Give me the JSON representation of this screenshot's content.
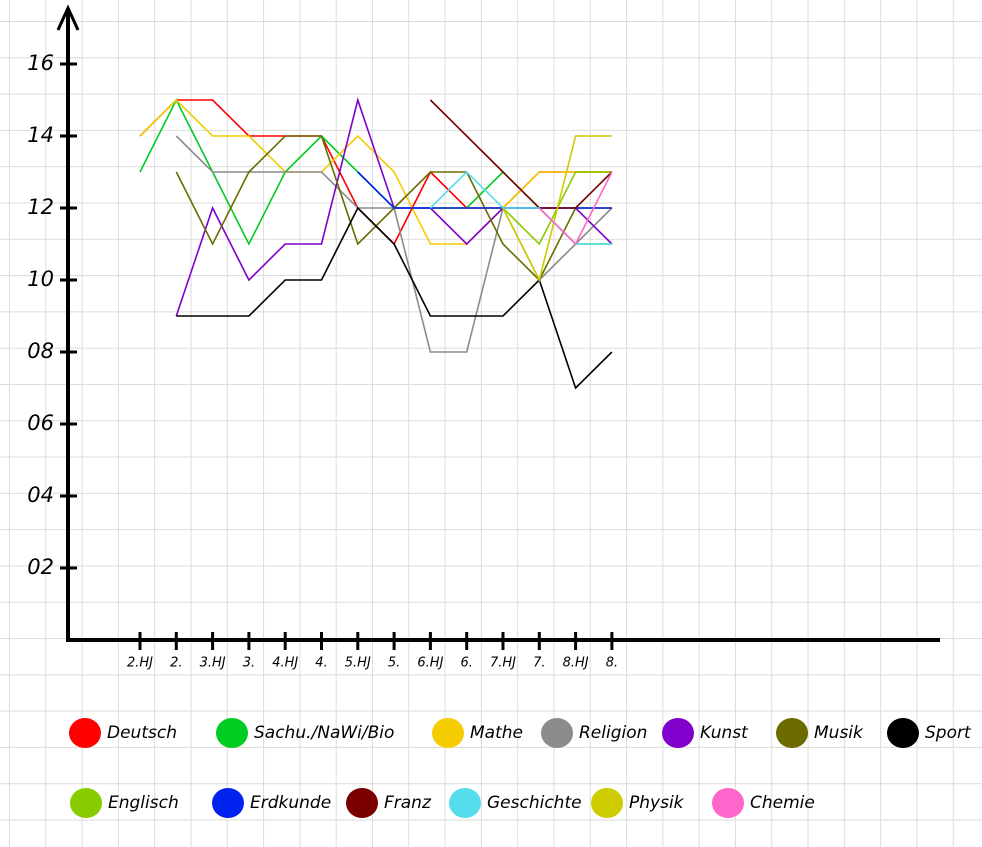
{
  "chart_data": {
    "type": "line",
    "categories": [
      "2.HJ",
      "2.",
      "3.HJ",
      "3.",
      "4.HJ",
      "4.",
      "5.HJ",
      "5.",
      "6.HJ",
      "6.",
      "7.HJ",
      "7.",
      "8.HJ",
      "8."
    ],
    "ylim": [
      0,
      17.5
    ],
    "yticks": [
      {
        "value": 2,
        "label": "02"
      },
      {
        "value": 4,
        "label": "04"
      },
      {
        "value": 6,
        "label": "06"
      },
      {
        "value": 8,
        "label": "08"
      },
      10,
      12,
      14,
      16
    ],
    "series": [
      {
        "name": "Deutsch",
        "color": "#ff0000",
        "values": [
          14,
          15,
          15,
          14,
          14,
          14,
          12,
          11,
          13,
          12,
          12,
          13,
          13,
          13
        ]
      },
      {
        "name": "Sachu./NaWi/Bio",
        "color": "#00cc22",
        "values": [
          13,
          15,
          13,
          11,
          13,
          14,
          13,
          12,
          12,
          12,
          13,
          12,
          11,
          11
        ]
      },
      {
        "name": "Mathe",
        "color": "#f5cc00",
        "values": [
          14,
          15,
          14,
          14,
          13,
          13,
          14,
          13,
          11,
          11,
          12,
          13,
          13,
          13
        ]
      },
      {
        "name": "Religion",
        "color": "#8c8c8c",
        "values": [
          null,
          14,
          13,
          13,
          13,
          13,
          12,
          12,
          8,
          8,
          12,
          10,
          11,
          12
        ]
      },
      {
        "name": "Kunst",
        "color": "#8000cc",
        "values": [
          null,
          9,
          12,
          10,
          11,
          11,
          15,
          12,
          12,
          11,
          12,
          12,
          12,
          11
        ]
      },
      {
        "name": "Musik",
        "color": "#6b6b00",
        "values": [
          null,
          13,
          11,
          13,
          14,
          14,
          11,
          12,
          13,
          13,
          11,
          10,
          12,
          12
        ]
      },
      {
        "name": "Sport",
        "color": "#000000",
        "values": [
          null,
          9,
          9,
          9,
          10,
          10,
          12,
          11,
          9,
          9,
          9,
          10,
          7,
          8
        ]
      },
      {
        "name": "Englisch",
        "color": "#88cc00",
        "values": [
          null,
          null,
          null,
          null,
          null,
          null,
          null,
          null,
          12,
          12,
          12,
          11,
          13,
          13
        ]
      },
      {
        "name": "Erdkunde",
        "color": "#0022ee",
        "values": [
          null,
          null,
          null,
          null,
          null,
          null,
          13,
          12,
          12,
          12,
          12,
          12,
          12,
          12
        ]
      },
      {
        "name": "Franz",
        "color": "#7a0000",
        "values": [
          null,
          null,
          null,
          null,
          null,
          null,
          null,
          null,
          15,
          14,
          13,
          12,
          12,
          13
        ]
      },
      {
        "name": "Geschichte",
        "color": "#55ddee",
        "values": [
          null,
          null,
          null,
          null,
          null,
          null,
          null,
          null,
          12,
          13,
          12,
          12,
          11,
          11
        ]
      },
      {
        "name": "Physik",
        "color": "#cccc00",
        "values": [
          null,
          null,
          null,
          null,
          null,
          null,
          null,
          null,
          null,
          null,
          12,
          10,
          14,
          14
        ]
      },
      {
        "name": "Chemie",
        "color": "#ff66cc",
        "values": [
          null,
          null,
          null,
          null,
          null,
          null,
          null,
          null,
          null,
          null,
          null,
          12,
          11,
          13
        ]
      }
    ]
  }
}
